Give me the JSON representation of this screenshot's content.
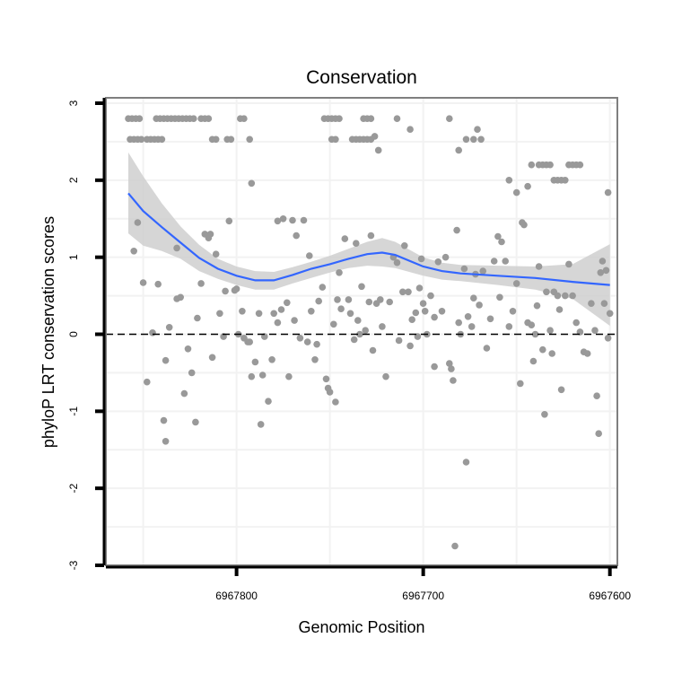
{
  "chart_data": {
    "type": "scatter",
    "title": "Conservation",
    "xlabel": "Genomic Position",
    "ylabel": "phyloP LRT conservation scores",
    "x_reversed": true,
    "xlim": [
      6967870,
      6967596
    ],
    "ylim": [
      -3,
      3.07
    ],
    "x_ticks": [
      6967800,
      6967700,
      6967600
    ],
    "x_tick_labels": [
      "6967800",
      "6967700",
      "6967600"
    ],
    "y_ticks": [
      -3,
      -2,
      -1,
      0,
      1,
      2,
      3
    ],
    "y_tick_labels": [
      "-3",
      "-2",
      "-1",
      "0",
      "1",
      "2",
      "3"
    ],
    "reference_line": {
      "y": 0,
      "style": "dashed"
    },
    "grid": true,
    "colors": {
      "points": "#999999",
      "smooth_line": "#3366ff",
      "ribbon": "#cfcfcf",
      "frame": "#7f7f7f",
      "grid": "#f2f2f2"
    },
    "series": [
      {
        "kind": "points",
        "points": [
          [
            6967858,
            2.8
          ],
          [
            6967856,
            2.8
          ],
          [
            6967854,
            2.8
          ],
          [
            6967852,
            2.8
          ],
          [
            6967857,
            2.53
          ],
          [
            6967855,
            2.53
          ],
          [
            6967853,
            2.53
          ],
          [
            6967851,
            2.53
          ],
          [
            6967848,
            2.53
          ],
          [
            6967846,
            2.53
          ],
          [
            6967844,
            2.53
          ],
          [
            6967842,
            2.53
          ],
          [
            6967840,
            2.53
          ],
          [
            6967843,
            2.8
          ],
          [
            6967841,
            2.8
          ],
          [
            6967839,
            2.8
          ],
          [
            6967837,
            2.8
          ],
          [
            6967835,
            2.8
          ],
          [
            6967833,
            2.8
          ],
          [
            6967831,
            2.8
          ],
          [
            6967829,
            2.8
          ],
          [
            6967827,
            2.8
          ],
          [
            6967825,
            2.8
          ],
          [
            6967823,
            2.8
          ],
          [
            6967819,
            2.8
          ],
          [
            6967817,
            2.8
          ],
          [
            6967815,
            2.8
          ],
          [
            6967813,
            2.53
          ],
          [
            6967811,
            2.53
          ],
          [
            6967805,
            2.53
          ],
          [
            6967803,
            2.53
          ],
          [
            6967798,
            2.8
          ],
          [
            6967796,
            2.8
          ],
          [
            6967793,
            2.53
          ],
          [
            6967753,
            2.8
          ],
          [
            6967751,
            2.8
          ],
          [
            6967749,
            2.8
          ],
          [
            6967747,
            2.8
          ],
          [
            6967745,
            2.8
          ],
          [
            6967749,
            2.53
          ],
          [
            6967747,
            2.53
          ],
          [
            6967738,
            2.53
          ],
          [
            6967736,
            2.53
          ],
          [
            6967734,
            2.53
          ],
          [
            6967732,
            2.53
          ],
          [
            6967730,
            2.53
          ],
          [
            6967728,
            2.53
          ],
          [
            6967726,
            2.57
          ],
          [
            6967732,
            2.8
          ],
          [
            6967730,
            2.8
          ],
          [
            6967728,
            2.8
          ],
          [
            6967724,
            2.39
          ],
          [
            6967714,
            2.8
          ],
          [
            6967707,
            2.66
          ],
          [
            6967686,
            2.8
          ],
          [
            6967681,
            2.39
          ],
          [
            6967677,
            2.53
          ],
          [
            6967673,
            2.53
          ],
          [
            6967671,
            2.66
          ],
          [
            6967669,
            2.53
          ],
          [
            6967654,
            2.0
          ],
          [
            6967650,
            1.84
          ],
          [
            6967644,
            1.92
          ],
          [
            6967642,
            2.2
          ],
          [
            6967638,
            2.2
          ],
          [
            6967636,
            2.2
          ],
          [
            6967634,
            2.2
          ],
          [
            6967632,
            2.2
          ],
          [
            6967630,
            2.0
          ],
          [
            6967628,
            2.0
          ],
          [
            6967626,
            2.0
          ],
          [
            6967624,
            2.0
          ],
          [
            6967622,
            2.2
          ],
          [
            6967620,
            2.2
          ],
          [
            6967618,
            2.2
          ],
          [
            6967616,
            2.2
          ],
          [
            6967601,
            1.84
          ],
          [
            6967853,
            1.45
          ],
          [
            6967855,
            1.08
          ],
          [
            6967850,
            0.67
          ],
          [
            6967845,
            0.02
          ],
          [
            6967848,
            -0.62
          ],
          [
            6967839,
            -1.12
          ],
          [
            6967838,
            -1.39
          ],
          [
            6967842,
            0.65
          ],
          [
            6967838,
            -0.34
          ],
          [
            6967836,
            0.09
          ],
          [
            6967832,
            1.12
          ],
          [
            6967832,
            0.46
          ],
          [
            6967830,
            0.48
          ],
          [
            6967828,
            -0.77
          ],
          [
            6967826,
            -0.19
          ],
          [
            6967824,
            -0.5
          ],
          [
            6967822,
            -1.14
          ],
          [
            6967821,
            0.21
          ],
          [
            6967819,
            0.66
          ],
          [
            6967817,
            1.3
          ],
          [
            6967815,
            1.25
          ],
          [
            6967814,
            1.3
          ],
          [
            6967813,
            -0.3
          ],
          [
            6967811,
            1.04
          ],
          [
            6967809,
            0.27
          ],
          [
            6967807,
            -0.03
          ],
          [
            6967806,
            0.56
          ],
          [
            6967804,
            1.47
          ],
          [
            6967801,
            0.57
          ],
          [
            6967800,
            0.59
          ],
          [
            6967799,
            0.0
          ],
          [
            6967797,
            0.3
          ],
          [
            6967796,
            -0.05
          ],
          [
            6967794,
            -0.1
          ],
          [
            6967793,
            -0.1
          ],
          [
            6967792,
            -0.55
          ],
          [
            6967792,
            1.96
          ],
          [
            6967790,
            -0.36
          ],
          [
            6967788,
            0.27
          ],
          [
            6967786,
            -0.53
          ],
          [
            6967787,
            -1.17
          ],
          [
            6967785,
            -0.03
          ],
          [
            6967783,
            -0.87
          ],
          [
            6967781,
            -0.33
          ],
          [
            6967780,
            0.27
          ],
          [
            6967778,
            1.47
          ],
          [
            6967778,
            0.15
          ],
          [
            6967776,
            0.32
          ],
          [
            6967775,
            1.5
          ],
          [
            6967773,
            0.41
          ],
          [
            6967772,
            -0.55
          ],
          [
            6967770,
            1.48
          ],
          [
            6967769,
            0.18
          ],
          [
            6967768,
            1.28
          ],
          [
            6967766,
            -0.05
          ],
          [
            6967764,
            1.48
          ],
          [
            6967762,
            -0.1
          ],
          [
            6967761,
            1.02
          ],
          [
            6967760,
            0.3
          ],
          [
            6967758,
            -0.33
          ],
          [
            6967757,
            -0.13
          ],
          [
            6967756,
            0.43
          ],
          [
            6967754,
            0.61
          ],
          [
            6967752,
            -0.58
          ],
          [
            6967751,
            -0.7
          ],
          [
            6967750,
            -0.75
          ],
          [
            6967748,
            0.13
          ],
          [
            6967747,
            -0.88
          ],
          [
            6967746,
            0.45
          ],
          [
            6967745,
            0.8
          ],
          [
            6967744,
            0.33
          ],
          [
            6967742,
            1.24
          ],
          [
            6967740,
            0.45
          ],
          [
            6967739,
            0.27
          ],
          [
            6967737,
            -0.07
          ],
          [
            6967736,
            1.18
          ],
          [
            6967735,
            0.18
          ],
          [
            6967734,
            0.0
          ],
          [
            6967733,
            0.62
          ],
          [
            6967731,
            0.05
          ],
          [
            6967729,
            0.42
          ],
          [
            6967728,
            1.28
          ],
          [
            6967727,
            -0.21
          ],
          [
            6967725,
            0.4
          ],
          [
            6967723,
            0.45
          ],
          [
            6967722,
            0.1
          ],
          [
            6967720,
            -0.55
          ],
          [
            6967718,
            0.42
          ],
          [
            6967716,
            1.0
          ],
          [
            6967714,
            0.93
          ],
          [
            6967713,
            -0.08
          ],
          [
            6967711,
            0.55
          ],
          [
            6967710,
            1.15
          ],
          [
            6967708,
            0.55
          ],
          [
            6967707,
            -0.15
          ],
          [
            6967706,
            0.19
          ],
          [
            6967704,
            0.28
          ],
          [
            6967703,
            -0.03
          ],
          [
            6967702,
            0.6
          ],
          [
            6967701,
            0.98
          ],
          [
            6967700,
            0.4
          ],
          [
            6967699,
            0.3
          ],
          [
            6967698,
            0.0
          ],
          [
            6967696,
            0.5
          ],
          [
            6967694,
            0.22
          ],
          [
            6967694,
            -0.42
          ],
          [
            6967692,
            0.94
          ],
          [
            6967690,
            0.3
          ],
          [
            6967688,
            1.0
          ],
          [
            6967686,
            -0.38
          ],
          [
            6967685,
            -0.45
          ],
          [
            6967684,
            -0.6
          ],
          [
            6967683,
            -2.75
          ],
          [
            6967682,
            1.35
          ],
          [
            6967681,
            0.15
          ],
          [
            6967680,
            0.0
          ],
          [
            6967678,
            0.85
          ],
          [
            6967677,
            -1.66
          ],
          [
            6967676,
            0.23
          ],
          [
            6967674,
            0.1
          ],
          [
            6967673,
            0.47
          ],
          [
            6967672,
            0.78
          ],
          [
            6967670,
            0.38
          ],
          [
            6967668,
            0.82
          ],
          [
            6967666,
            -0.18
          ],
          [
            6967664,
            0.2
          ],
          [
            6967662,
            0.95
          ],
          [
            6967660,
            1.27
          ],
          [
            6967659,
            0.48
          ],
          [
            6967658,
            1.2
          ],
          [
            6967656,
            0.95
          ],
          [
            6967654,
            0.1
          ],
          [
            6967652,
            0.3
          ],
          [
            6967650,
            0.66
          ],
          [
            6967648,
            -0.64
          ],
          [
            6967647,
            1.45
          ],
          [
            6967646,
            1.42
          ],
          [
            6967644,
            0.15
          ],
          [
            6967642,
            0.12
          ],
          [
            6967641,
            -0.35
          ],
          [
            6967640,
            0.0
          ],
          [
            6967639,
            0.37
          ],
          [
            6967638,
            0.88
          ],
          [
            6967636,
            -0.2
          ],
          [
            6967635,
            -1.04
          ],
          [
            6967634,
            0.55
          ],
          [
            6967632,
            0.05
          ],
          [
            6967631,
            -0.25
          ],
          [
            6967630,
            0.55
          ],
          [
            6967628,
            0.5
          ],
          [
            6967627,
            0.32
          ],
          [
            6967626,
            -0.72
          ],
          [
            6967624,
            0.5
          ],
          [
            6967622,
            0.91
          ],
          [
            6967620,
            0.5
          ],
          [
            6967618,
            0.15
          ],
          [
            6967616,
            0.03
          ],
          [
            6967614,
            -0.23
          ],
          [
            6967612,
            -0.25
          ],
          [
            6967610,
            0.4
          ],
          [
            6967608,
            0.05
          ],
          [
            6967607,
            -0.8
          ],
          [
            6967606,
            -1.29
          ],
          [
            6967605,
            0.8
          ],
          [
            6967604,
            0.95
          ],
          [
            6967603,
            0.4
          ],
          [
            6967602,
            0.83
          ],
          [
            6967601,
            -0.05
          ],
          [
            6967600,
            0.27
          ]
        ]
      },
      {
        "kind": "smooth",
        "points": [
          [
            6967858,
            1.83
          ],
          [
            6967850,
            1.6
          ],
          [
            6967840,
            1.39
          ],
          [
            6967830,
            1.19
          ],
          [
            6967820,
            0.99
          ],
          [
            6967810,
            0.85
          ],
          [
            6967800,
            0.76
          ],
          [
            6967790,
            0.7
          ],
          [
            6967780,
            0.7
          ],
          [
            6967770,
            0.77
          ],
          [
            6967760,
            0.85
          ],
          [
            6967750,
            0.91
          ],
          [
            6967740,
            0.98
          ],
          [
            6967730,
            1.04
          ],
          [
            6967722,
            1.06
          ],
          [
            6967715,
            1.03
          ],
          [
            6967700,
            0.88
          ],
          [
            6967690,
            0.82
          ],
          [
            6967680,
            0.79
          ],
          [
            6967660,
            0.76
          ],
          [
            6967640,
            0.73
          ],
          [
            6967620,
            0.68
          ],
          [
            6967600,
            0.64
          ]
        ],
        "band_upper": [
          2.36,
          2.05,
          1.7,
          1.4,
          1.16,
          0.98,
          0.88,
          0.82,
          0.81,
          0.87,
          0.94,
          1.02,
          1.11,
          1.2,
          1.25,
          1.2,
          1.0,
          0.93,
          0.9,
          0.89,
          0.88,
          0.91,
          1.17
        ],
        "band_lower": [
          1.31,
          1.15,
          1.08,
          0.98,
          0.82,
          0.72,
          0.64,
          0.58,
          0.58,
          0.66,
          0.73,
          0.8,
          0.86,
          0.89,
          0.88,
          0.86,
          0.76,
          0.71,
          0.69,
          0.64,
          0.58,
          0.46,
          0.11
        ]
      }
    ]
  }
}
